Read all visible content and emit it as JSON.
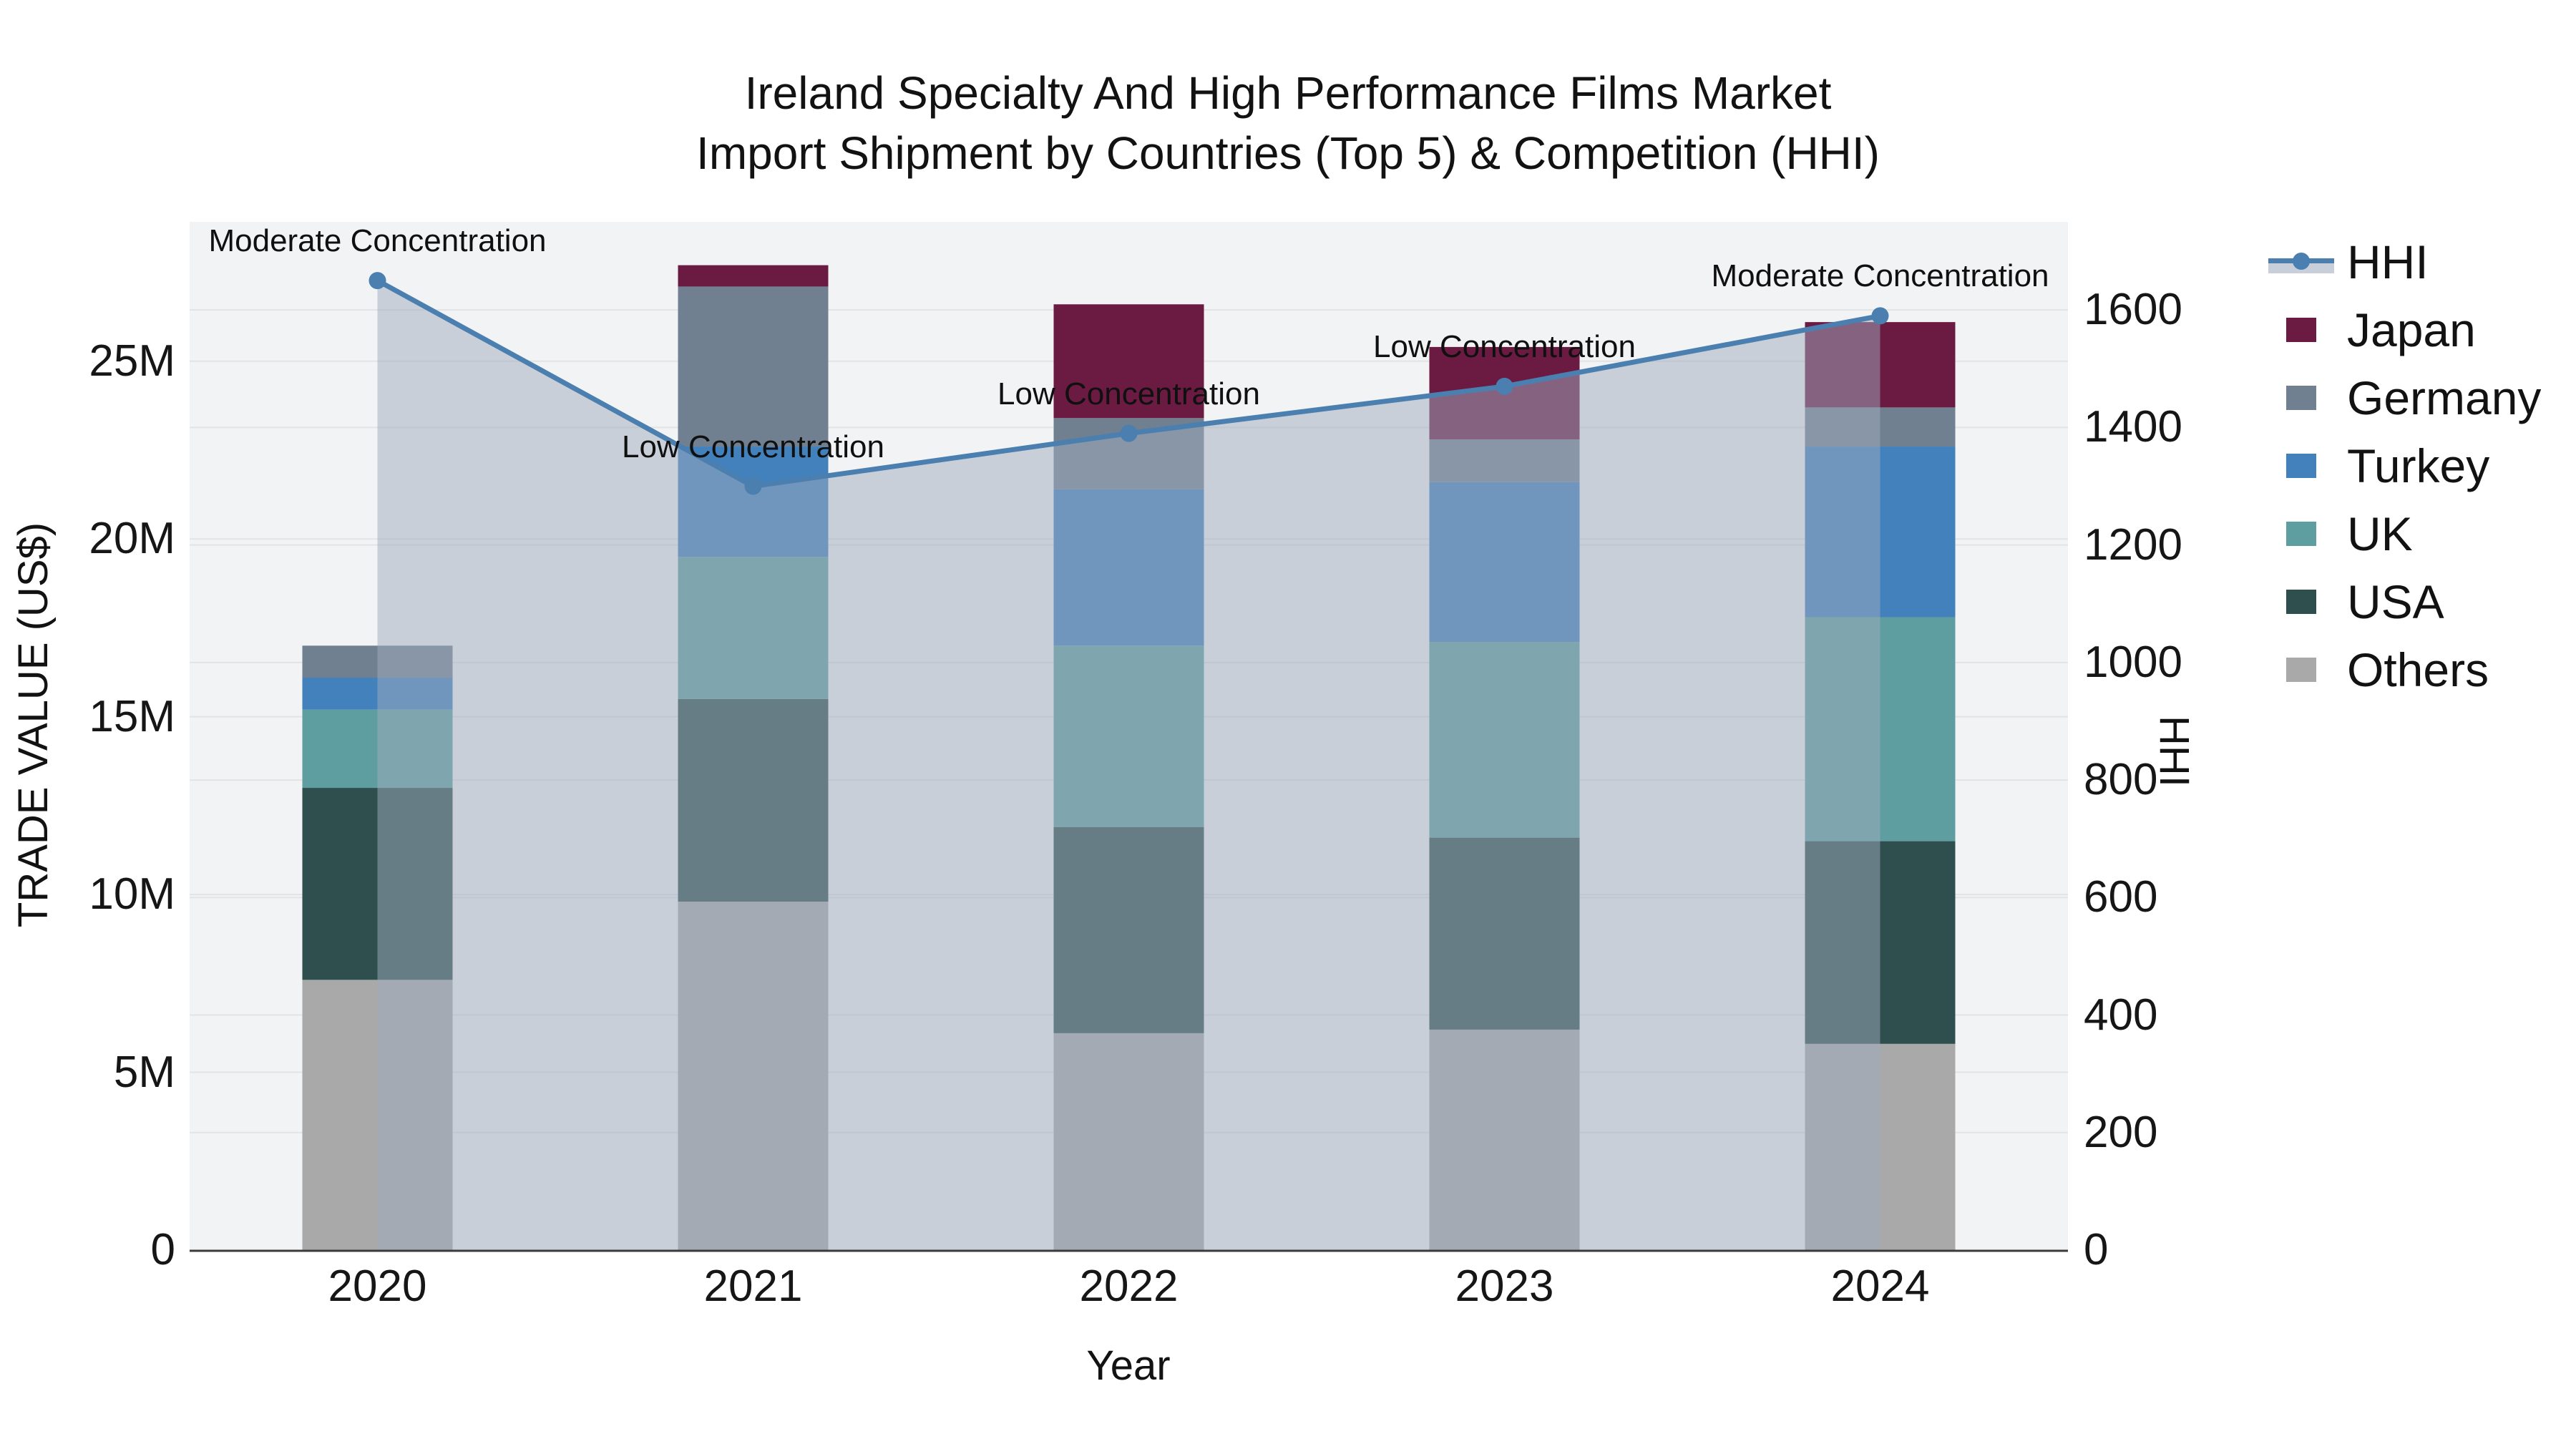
{
  "title": {
    "line1": "Ireland Specialty And High Performance Films Market",
    "line2": "Import Shipment by Countries (Top 5) & Competition (HHI)"
  },
  "axes": {
    "x": {
      "title": "Year",
      "categories": [
        "2020",
        "2021",
        "2022",
        "2023",
        "2024"
      ]
    },
    "y_left": {
      "title": "TRADE VALUE (US$)",
      "tick_labels": [
        "0",
        "5M",
        "10M",
        "15M",
        "20M",
        "25M"
      ],
      "tick_values_musd": [
        0,
        5,
        10,
        15,
        20,
        25
      ],
      "range_musd": [
        0,
        28.92
      ]
    },
    "y_right": {
      "title": "HHI",
      "tick_labels": [
        "0",
        "200",
        "400",
        "600",
        "800",
        "1000",
        "1200",
        "1400",
        "1600"
      ],
      "tick_values": [
        0,
        200,
        400,
        600,
        800,
        1000,
        1200,
        1400,
        1600
      ],
      "range": [
        0,
        1750
      ]
    }
  },
  "legend": {
    "items": [
      {
        "label": "HHI",
        "type": "line",
        "color": "#4A7FAF",
        "band_color": "#C9CFDA"
      },
      {
        "label": "Japan",
        "type": "box",
        "color": "#6B1B42"
      },
      {
        "label": "Germany",
        "type": "box",
        "color": "#708090"
      },
      {
        "label": "Turkey",
        "type": "box",
        "color": "#4381BC"
      },
      {
        "label": "UK",
        "type": "box",
        "color": "#5F9EA0"
      },
      {
        "label": "USA",
        "type": "box",
        "color": "#2F4F4F"
      },
      {
        "label": "Others",
        "type": "box",
        "color": "#A9A9A9"
      }
    ]
  },
  "chart_data": {
    "type": "bar+line",
    "categories": [
      "2020",
      "2021",
      "2022",
      "2023",
      "2024"
    ],
    "bar_unit": "million US$",
    "stack_order_note": "bottom to top",
    "series": [
      {
        "name": "Others",
        "color": "#A9A9A9",
        "values_musd": [
          7.6,
          9.8,
          6.1,
          6.2,
          5.8
        ]
      },
      {
        "name": "USA",
        "color": "#2F4F4F",
        "values_musd": [
          5.4,
          5.7,
          5.8,
          5.4,
          5.7
        ]
      },
      {
        "name": "UK",
        "color": "#5F9EA0",
        "values_musd": [
          2.2,
          4.0,
          5.1,
          5.5,
          6.3
        ]
      },
      {
        "name": "Turkey",
        "color": "#4381BC",
        "values_musd": [
          0.9,
          3.1,
          4.4,
          4.5,
          4.8
        ]
      },
      {
        "name": "Germany",
        "color": "#708090",
        "values_musd": [
          0.9,
          4.5,
          2.0,
          1.2,
          1.1
        ]
      },
      {
        "name": "Japan",
        "color": "#6B1B42",
        "values_musd": [
          0.0,
          0.6,
          3.2,
          2.6,
          2.4
        ]
      }
    ],
    "hhi_line": {
      "name": "HHI",
      "color": "#4A7FAF",
      "fill_color": "rgba(159,172,190,0.5)",
      "values": [
        1650,
        1300,
        1390,
        1470,
        1590
      ]
    },
    "annotations": [
      {
        "category": "2020",
        "text": "Moderate Concentration"
      },
      {
        "category": "2021",
        "text": "Low Concentration"
      },
      {
        "category": "2022",
        "text": "Low Concentration"
      },
      {
        "category": "2023",
        "text": "Low Concentration"
      },
      {
        "category": "2024",
        "text": "Moderate Concentration"
      }
    ],
    "plot_background": "#F2F3F4",
    "gridline_color": "#E1E3E5",
    "axis_line_color": "#3B3B3B"
  }
}
